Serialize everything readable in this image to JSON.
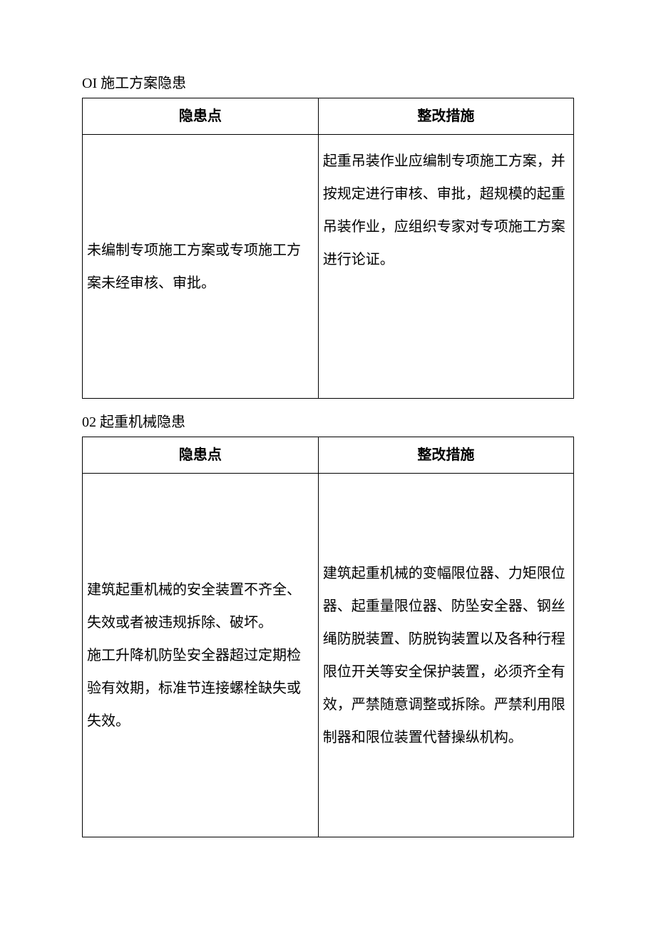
{
  "section1": {
    "title": "OI 施工方案隐患",
    "headers": {
      "left": "隐患点",
      "right": "整改措施"
    },
    "row": {
      "left": "未编制专项施工方案或专项施工方案未经审核、审批。",
      "right": "起重吊装作业应编制专项施工方案，并按规定进行审核、审批，超规模的起重吊装作业，应组织专家对专项施工方案进行论证。"
    }
  },
  "section2": {
    "title": "02 起重机械隐患",
    "headers": {
      "left": "隐患点",
      "right": "整改措施"
    },
    "row": {
      "left": "建筑起重机械的安全装置不齐全、失效或者被违规拆除、破坏。\n施工升降机防坠安全器超过定期检验有效期，标准节连接螺栓缺失或失效。",
      "right": "建筑起重机械的变幅限位器、力矩限位器、起重量限位器、防坠安全器、钢丝绳防脱装置、防脱钩装置以及各种行程限位开关等安全保护装置，必须齐全有效，严禁随意调整或拆除。严禁利用限制器和限位装置代替操纵机构。"
    }
  }
}
